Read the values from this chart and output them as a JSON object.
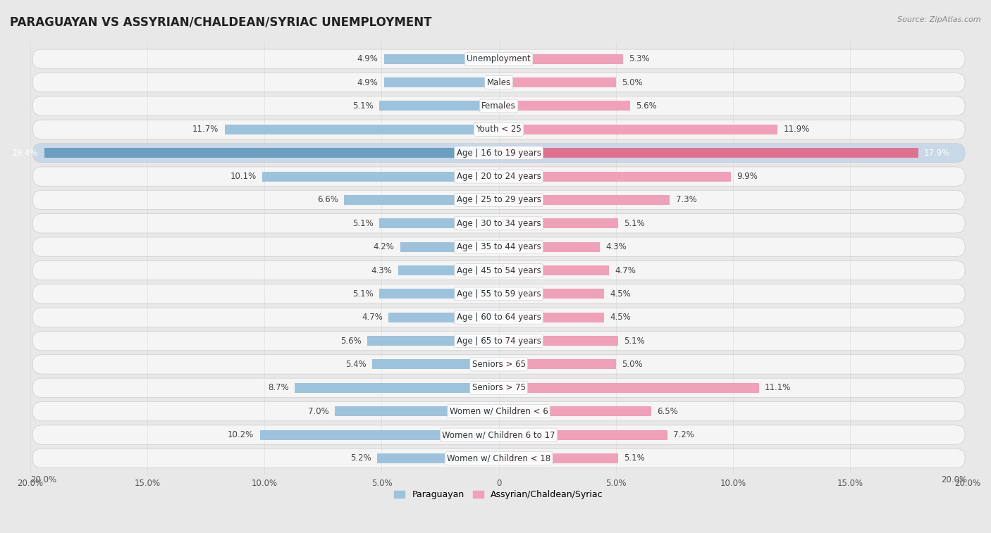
{
  "title": "PARAGUAYAN VS ASSYRIAN/CHALDEAN/SYRIAC UNEMPLOYMENT",
  "source": "Source: ZipAtlas.com",
  "categories": [
    "Unemployment",
    "Males",
    "Females",
    "Youth < 25",
    "Age | 16 to 19 years",
    "Age | 20 to 24 years",
    "Age | 25 to 29 years",
    "Age | 30 to 34 years",
    "Age | 35 to 44 years",
    "Age | 45 to 54 years",
    "Age | 55 to 59 years",
    "Age | 60 to 64 years",
    "Age | 65 to 74 years",
    "Seniors > 65",
    "Seniors > 75",
    "Women w/ Children < 6",
    "Women w/ Children 6 to 17",
    "Women w/ Children < 18"
  ],
  "paraguayan": [
    4.9,
    4.9,
    5.1,
    11.7,
    19.4,
    10.1,
    6.6,
    5.1,
    4.2,
    4.3,
    5.1,
    4.7,
    5.6,
    5.4,
    8.7,
    7.0,
    10.2,
    5.2
  ],
  "assyrian": [
    5.3,
    5.0,
    5.6,
    11.9,
    17.9,
    9.9,
    7.3,
    5.1,
    4.3,
    4.7,
    4.5,
    4.5,
    5.1,
    5.0,
    11.1,
    6.5,
    7.2,
    5.1
  ],
  "paraguayan_color": "#9dc3dc",
  "assyrian_color": "#f0a0b8",
  "highlight_paraguayan_color": "#6a9fbf",
  "highlight_assyrian_color": "#e07090",
  "xlim": 20.0,
  "bg_color": "#e8e8e8",
  "row_bg_color": "#f5f5f5",
  "highlight_row_bg": "#c8d8e8",
  "highlight_row": 4,
  "legend_paraguayan": "Paraguayan",
  "legend_assyrian": "Assyrian/Chaldean/Syriac"
}
